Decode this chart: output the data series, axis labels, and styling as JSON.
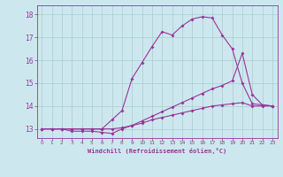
{
  "xlabel": "Windchill (Refroidissement éolien,°C)",
  "xlim": [
    -0.5,
    23.5
  ],
  "ylim": [
    12.6,
    18.4
  ],
  "yticks": [
    13,
    14,
    15,
    16,
    17,
    18
  ],
  "xticks": [
    0,
    1,
    2,
    3,
    4,
    5,
    6,
    7,
    8,
    9,
    10,
    11,
    12,
    13,
    14,
    15,
    16,
    17,
    18,
    19,
    20,
    21,
    22,
    23
  ],
  "bg_color": "#cce8ee",
  "line_color": "#993399",
  "grid_color": "#aacccc",
  "line1_x": [
    0,
    1,
    2,
    3,
    4,
    5,
    6,
    7,
    8,
    9,
    10,
    11,
    12,
    13,
    14,
    15,
    16,
    17,
    18,
    19,
    20,
    21,
    22,
    23
  ],
  "line1_y": [
    13.0,
    13.0,
    13.0,
    13.0,
    13.0,
    13.0,
    13.0,
    13.4,
    13.8,
    15.2,
    15.9,
    16.6,
    17.25,
    17.1,
    17.5,
    17.8,
    17.9,
    17.85,
    17.1,
    16.5,
    15.0,
    14.1,
    14.05,
    14.0
  ],
  "line2_x": [
    0,
    1,
    2,
    3,
    4,
    5,
    6,
    7,
    8,
    9,
    10,
    11,
    12,
    13,
    14,
    15,
    16,
    17,
    18,
    19,
    20,
    21,
    22,
    23
  ],
  "line2_y": [
    13.0,
    13.0,
    13.0,
    12.9,
    12.9,
    12.9,
    12.85,
    12.8,
    13.0,
    13.15,
    13.35,
    13.55,
    13.75,
    13.95,
    14.15,
    14.35,
    14.55,
    14.75,
    14.9,
    15.1,
    16.3,
    14.5,
    14.05,
    14.0
  ],
  "line3_x": [
    0,
    1,
    2,
    3,
    4,
    5,
    6,
    7,
    8,
    9,
    10,
    11,
    12,
    13,
    14,
    15,
    16,
    17,
    18,
    19,
    20,
    21,
    22,
    23
  ],
  "line3_y": [
    13.0,
    13.0,
    13.0,
    13.0,
    13.0,
    13.0,
    13.0,
    13.0,
    13.05,
    13.15,
    13.25,
    13.4,
    13.5,
    13.6,
    13.7,
    13.8,
    13.9,
    14.0,
    14.05,
    14.1,
    14.15,
    14.0,
    14.0,
    14.0
  ]
}
